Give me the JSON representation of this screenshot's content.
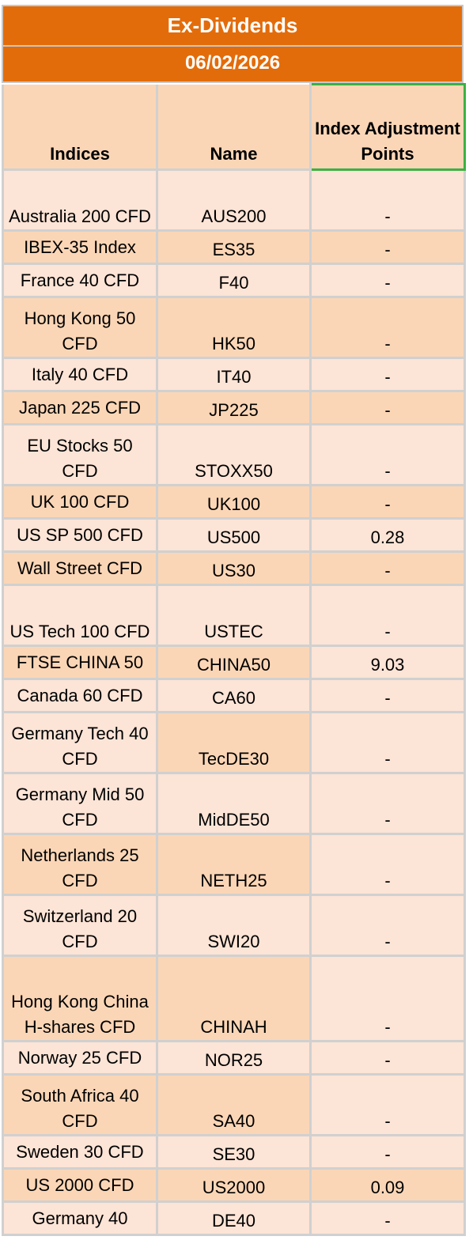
{
  "header": {
    "title": "Ex-Dividends",
    "date": "06/02/2026"
  },
  "columns": {
    "indices": "Indices",
    "name": "Name",
    "adjustment": "Index Adjustment Points"
  },
  "rows": [
    {
      "index": "Australia 200 CFD",
      "name": "AUS200",
      "points": "-"
    },
    {
      "index": "IBEX-35 Index",
      "name": "ES35",
      "points": "-"
    },
    {
      "index": "France 40 CFD",
      "name": "F40",
      "points": "-"
    },
    {
      "index": "Hong Kong 50 CFD",
      "name": "HK50",
      "points": "-"
    },
    {
      "index": "Italy 40 CFD",
      "name": "IT40",
      "points": "-"
    },
    {
      "index": "Japan 225 CFD",
      "name": "JP225",
      "points": "-"
    },
    {
      "index": "EU Stocks 50 CFD",
      "name": "STOXX50",
      "points": "-"
    },
    {
      "index": "UK 100 CFD",
      "name": "UK100",
      "points": "-"
    },
    {
      "index": "US SP 500 CFD",
      "name": "US500",
      "points": "0.28"
    },
    {
      "index": "Wall Street CFD",
      "name": "US30",
      "points": "-"
    },
    {
      "index": "US Tech 100 CFD",
      "name": "USTEC",
      "points": "-"
    },
    {
      "index": "FTSE CHINA 50",
      "name": "CHINA50",
      "points": "9.03"
    },
    {
      "index": "Canada 60 CFD",
      "name": "CA60",
      "points": "-"
    },
    {
      "index": "Germany Tech 40 CFD",
      "name": "TecDE30",
      "points": "-"
    },
    {
      "index": "Germany Mid 50 CFD",
      "name": "MidDE50",
      "points": "-"
    },
    {
      "index": "Netherlands 25 CFD",
      "name": "NETH25",
      "points": "-"
    },
    {
      "index": "Switzerland 20 CFD",
      "name": "SWI20",
      "points": "-"
    },
    {
      "index": "Hong Kong China H-shares CFD",
      "name": "CHINAH",
      "points": "-"
    },
    {
      "index": "Norway 25 CFD",
      "name": "NOR25",
      "points": "-"
    },
    {
      "index": "South Africa 40 CFD",
      "name": "SA40",
      "points": "-"
    },
    {
      "index": "Sweden 30 CFD",
      "name": "SE30",
      "points": "-"
    },
    {
      "index": "US 2000 CFD",
      "name": "US2000",
      "points": "0.09"
    },
    {
      "index": "Germany 40",
      "name": "DE40",
      "points": "-"
    }
  ],
  "colors": {
    "title_bg": "#e36c0a",
    "row_light": "#fce4d6",
    "row_dark": "#fbd6b6",
    "header_highlight_border": "#3cb043"
  }
}
